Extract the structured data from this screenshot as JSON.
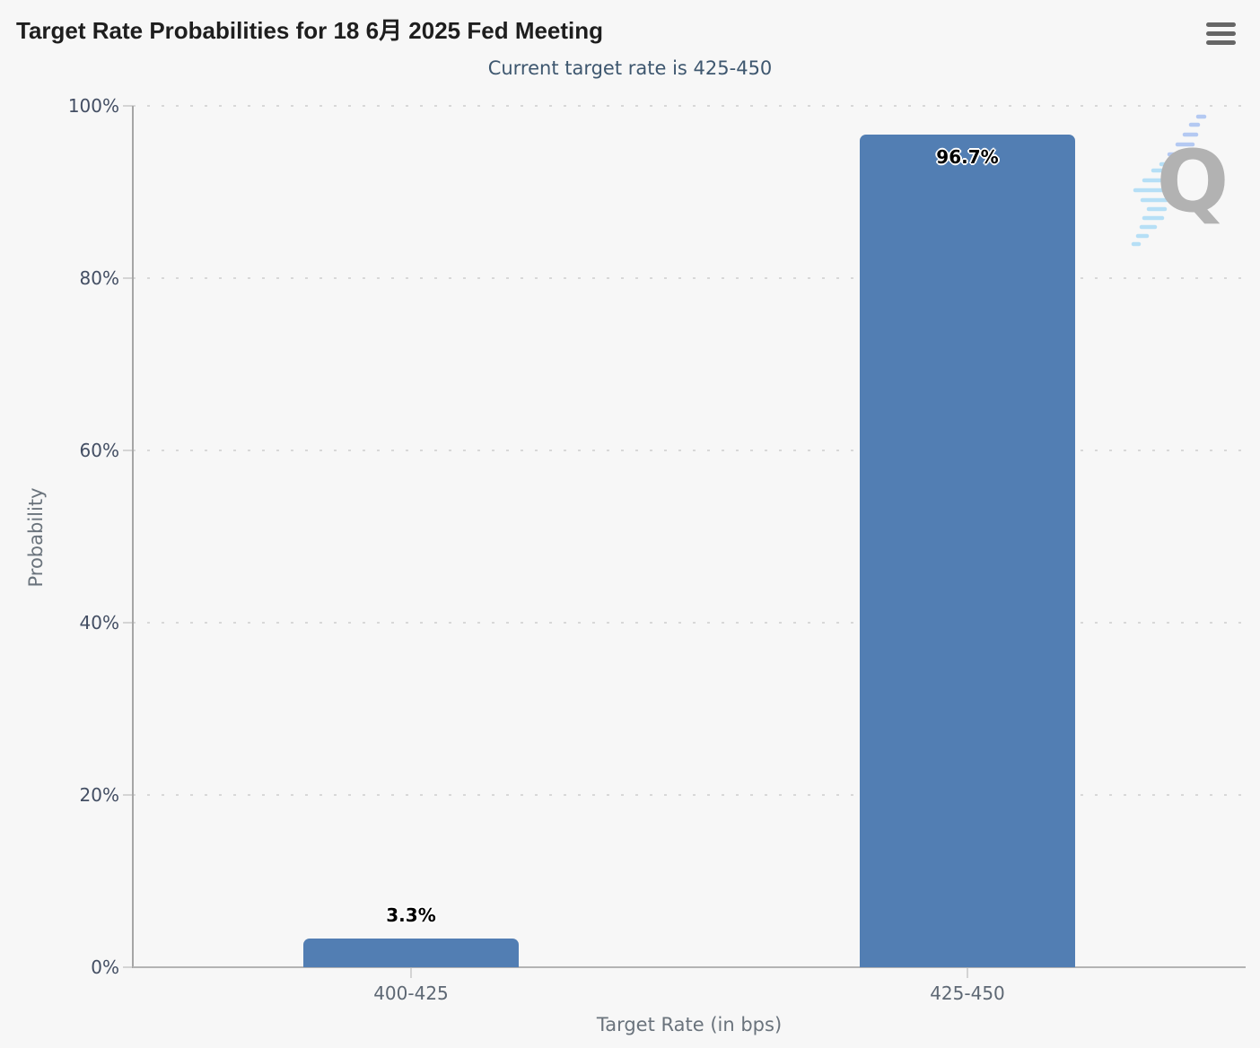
{
  "chart_data": {
    "type": "bar",
    "title": "Target Rate Probabilities for 18 6月 2025 Fed Meeting",
    "subtitle": "Current target rate is 425-450",
    "categories": [
      "400-425",
      "425-450"
    ],
    "values": [
      3.3,
      96.7
    ],
    "value_labels": [
      "3.3%",
      "96.7%"
    ],
    "xlabel": "Target Rate (in bps)",
    "ylabel": "Probability",
    "ylim": [
      0,
      100
    ],
    "yticks": [
      0,
      20,
      40,
      60,
      80,
      100
    ],
    "ytick_labels": [
      "0%",
      "20%",
      "40%",
      "60%",
      "80%",
      "100%"
    ],
    "grid": "dotted-horizontal",
    "legend": "none",
    "bar_color": "#527eb3"
  },
  "toolbar": {
    "menu_icon": "hamburger-icon"
  },
  "watermark": {
    "letter": "Q"
  }
}
